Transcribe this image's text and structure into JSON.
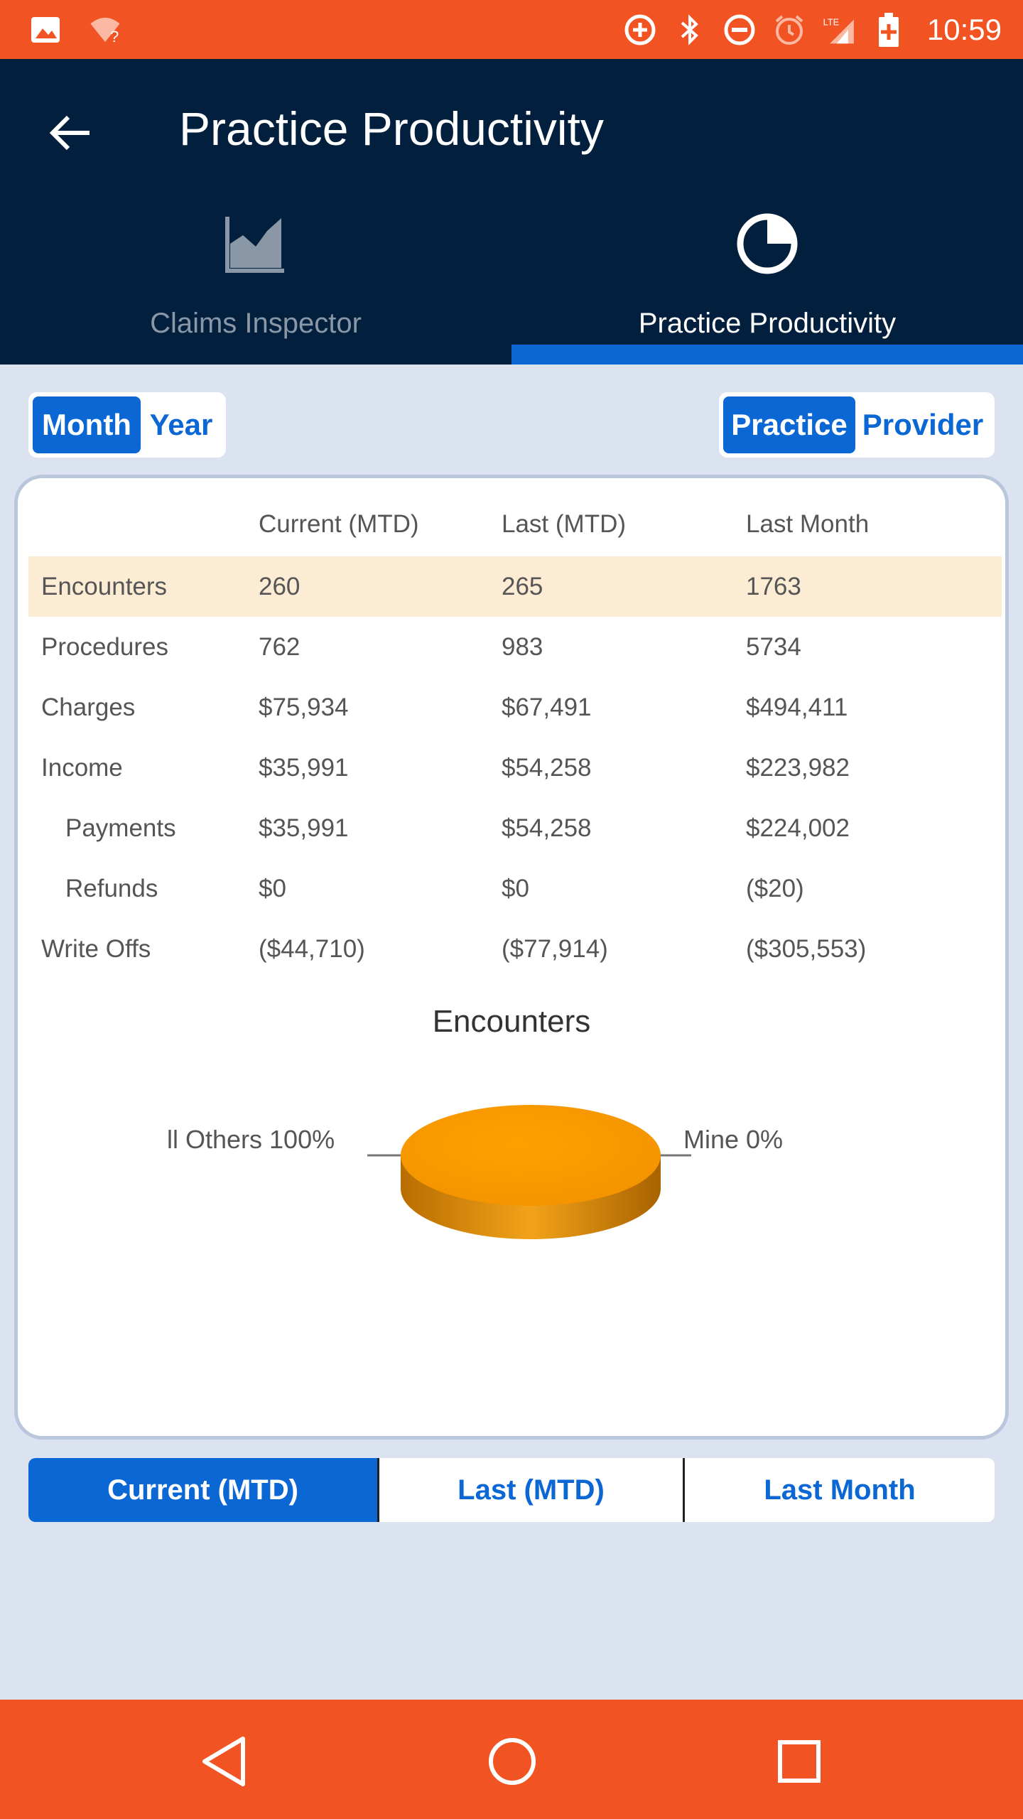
{
  "status_bar": {
    "time": "10:59",
    "left_icons": [
      "image-icon",
      "wifi-question-icon"
    ],
    "right_icons": [
      "data-saver-icon",
      "bluetooth-icon",
      "do-not-disturb-icon",
      "alarm-icon",
      "lte-signal-icon",
      "battery-icon"
    ],
    "lte_label": "LTE"
  },
  "header": {
    "title": "Practice Productivity"
  },
  "tabs": [
    {
      "label": "Claims Inspector",
      "icon": "area-chart-icon",
      "active": false
    },
    {
      "label": "Practice Productivity",
      "icon": "pie-chart-icon",
      "active": true
    }
  ],
  "period_toggle": {
    "options": [
      "Month",
      "Year"
    ],
    "selected": "Month"
  },
  "scope_toggle": {
    "options": [
      "Practice",
      "Provider"
    ],
    "selected": "Practice"
  },
  "table": {
    "columns": [
      "",
      "Current (MTD)",
      "Last (MTD)",
      "Last Month"
    ],
    "rows": [
      {
        "label": "Encounters",
        "values": [
          "260",
          "265",
          "1763"
        ],
        "highlight": true,
        "indent": false
      },
      {
        "label": "Procedures",
        "values": [
          "762",
          "983",
          "5734"
        ],
        "highlight": false,
        "indent": false
      },
      {
        "label": "Charges",
        "values": [
          "$75,934",
          "$67,491",
          "$494,411"
        ],
        "highlight": false,
        "indent": false
      },
      {
        "label": "Income",
        "values": [
          "$35,991",
          "$54,258",
          "$223,982"
        ],
        "highlight": false,
        "indent": false
      },
      {
        "label": "Payments",
        "values": [
          "$35,991",
          "$54,258",
          "$224,002"
        ],
        "highlight": false,
        "indent": true
      },
      {
        "label": "Refunds",
        "values": [
          "$0",
          "$0",
          "($20)"
        ],
        "highlight": false,
        "indent": true
      },
      {
        "label": "Write Offs",
        "values": [
          "($44,710)",
          "($77,914)",
          "($305,553)"
        ],
        "highlight": false,
        "indent": false
      }
    ]
  },
  "chart_data": {
    "type": "pie",
    "title": "Encounters",
    "categories": [
      "All Others",
      "Mine"
    ],
    "values": [
      100,
      0
    ],
    "labels": [
      "ll Others 100%",
      "Mine 0%"
    ],
    "unit": "%",
    "colors": [
      "#ff9900",
      "#ff9900"
    ],
    "style": "3d"
  },
  "range_selector": {
    "options": [
      "Current (MTD)",
      "Last (MTD)",
      "Last Month"
    ],
    "selected": "Current (MTD)"
  },
  "nav_bar": {
    "buttons": [
      "back-nav-icon",
      "home-nav-icon",
      "recents-nav-icon"
    ]
  },
  "colors": {
    "status_bar": "#f25322",
    "app_bar": "#02203d",
    "accent": "#0a67d4",
    "background": "#dbe3f1",
    "highlight_row": "#fdecd4",
    "pie": "#ff9900"
  }
}
